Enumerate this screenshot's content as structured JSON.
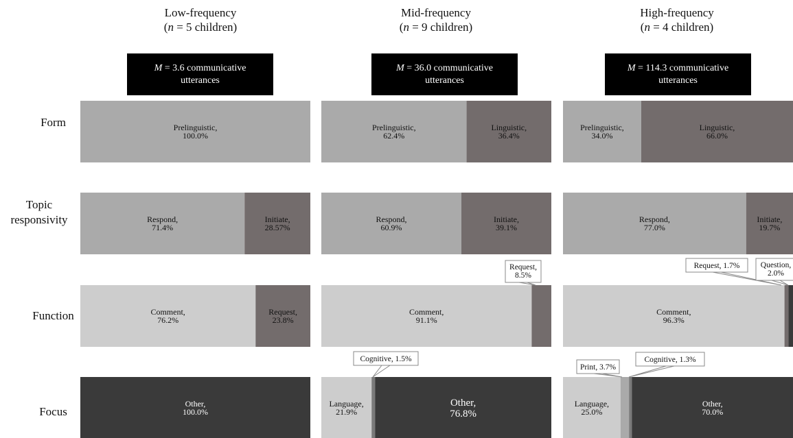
{
  "columns": [
    {
      "title": "Low-frequency",
      "n_prefix": "n",
      "n_text": " = 5 children",
      "mean_prefix": "M",
      "mean_text": " = 3.6 communicative",
      "mean_text2": "utterances"
    },
    {
      "title": "Mid-frequency",
      "n_prefix": "n",
      "n_text": " = 9 children",
      "mean_prefix": "M",
      "mean_text": " = 36.0 communicative",
      "mean_text2": "utterances"
    },
    {
      "title": "High-frequency",
      "n_prefix": "n",
      "n_text": " = 4 children",
      "mean_prefix": "M",
      "mean_text": " = 114.3 communicative",
      "mean_text2": "utterances"
    }
  ],
  "rows": [
    {
      "label_lines": [
        "Form"
      ]
    },
    {
      "label_lines": [
        "Topic",
        "responsivity"
      ]
    },
    {
      "label_lines": [
        "Function"
      ]
    },
    {
      "label_lines": [
        "Focus"
      ]
    }
  ],
  "colors": {
    "prelinguistic": "#aaaaaa",
    "linguistic": "#736c6c",
    "respond": "#aaaaaa",
    "initiate": "#736c6c",
    "comment": "#cdcdcd",
    "request": "#736c6c",
    "question": "#3a3a3a",
    "language": "#cdcdcd",
    "cognitive": "#7a7a7a",
    "print": "#aaaaaa",
    "other": "#3a3a3a"
  },
  "chart_data": {
    "type": "bar",
    "orientation": "horizontal-stacked-100",
    "panels": [
      {
        "column": "Low-frequency",
        "row": "Form",
        "segments": [
          {
            "name": "Prelinguistic",
            "value": 100.0,
            "label": "100.0%"
          }
        ]
      },
      {
        "column": "Mid-frequency",
        "row": "Form",
        "segments": [
          {
            "name": "Prelinguistic",
            "value": 62.4,
            "label": "62.4%"
          },
          {
            "name": "Linguistic",
            "value": 36.4,
            "label": "36.4%"
          }
        ]
      },
      {
        "column": "High-frequency",
        "row": "Form",
        "segments": [
          {
            "name": "Prelinguistic",
            "value": 34.0,
            "label": "34.0%"
          },
          {
            "name": "Linguistic",
            "value": 66.0,
            "label": "66.0%"
          }
        ]
      },
      {
        "column": "Low-frequency",
        "row": "Topic responsivity",
        "segments": [
          {
            "name": "Respond",
            "value": 71.4,
            "label": "71.4%"
          },
          {
            "name": "Initiate",
            "value": 28.57,
            "label": "28.57%"
          }
        ]
      },
      {
        "column": "Mid-frequency",
        "row": "Topic responsivity",
        "segments": [
          {
            "name": "Respond",
            "value": 60.9,
            "label": "60.9%"
          },
          {
            "name": "Initiate",
            "value": 39.1,
            "label": "39.1%"
          }
        ]
      },
      {
        "column": "High-frequency",
        "row": "Topic responsivity",
        "segments": [
          {
            "name": "Respond",
            "value": 77.0,
            "label": "77.0%"
          },
          {
            "name": "Initiate",
            "value": 19.7,
            "label": "19.7%"
          }
        ]
      },
      {
        "column": "Low-frequency",
        "row": "Function",
        "segments": [
          {
            "name": "Comment",
            "value": 76.2,
            "label": "76.2%"
          },
          {
            "name": "Request",
            "value": 23.8,
            "label": "23.8%"
          }
        ]
      },
      {
        "column": "Mid-frequency",
        "row": "Function",
        "segments": [
          {
            "name": "Comment",
            "value": 91.1,
            "label": "91.1%"
          },
          {
            "name": "Request",
            "value": 8.5,
            "label": "8.5%",
            "callout": true
          }
        ]
      },
      {
        "column": "High-frequency",
        "row": "Function",
        "segments": [
          {
            "name": "Comment",
            "value": 96.3,
            "label": "96.3%"
          },
          {
            "name": "Request",
            "value": 1.7,
            "label": "1.7%",
            "callout": true
          },
          {
            "name": "Question",
            "value": 2.0,
            "label": "2.0%",
            "callout": true
          }
        ]
      },
      {
        "column": "Low-frequency",
        "row": "Focus",
        "segments": [
          {
            "name": "Other",
            "value": 100.0,
            "label": "100.0%"
          }
        ]
      },
      {
        "column": "Mid-frequency",
        "row": "Focus",
        "segments": [
          {
            "name": "Language",
            "value": 21.9,
            "label": "21.9%"
          },
          {
            "name": "Cognitive",
            "value": 1.5,
            "label": "1.5%",
            "callout": true
          },
          {
            "name": "Other",
            "value": 76.8,
            "label": "76.8%",
            "emphasis": true
          }
        ]
      },
      {
        "column": "High-frequency",
        "row": "Focus",
        "segments": [
          {
            "name": "Language",
            "value": 25.0,
            "label": "25.0%"
          },
          {
            "name": "Print",
            "value": 3.7,
            "label": "3.7%",
            "callout": true
          },
          {
            "name": "Cognitive",
            "value": 1.3,
            "label": "1.3%",
            "callout": true
          },
          {
            "name": "Other",
            "value": 70.0,
            "label": "70.0%"
          }
        ]
      }
    ]
  }
}
